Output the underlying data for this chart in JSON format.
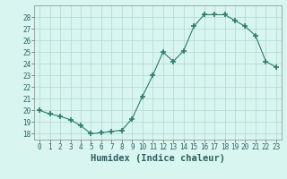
{
  "x": [
    0,
    1,
    2,
    3,
    4,
    5,
    6,
    7,
    8,
    9,
    10,
    11,
    12,
    13,
    14,
    15,
    16,
    17,
    18,
    19,
    20,
    21,
    22,
    23
  ],
  "y": [
    20.0,
    19.7,
    19.5,
    19.2,
    18.7,
    18.0,
    18.1,
    18.2,
    18.3,
    19.3,
    21.2,
    23.0,
    25.0,
    24.2,
    25.1,
    27.2,
    28.2,
    28.2,
    28.2,
    27.7,
    27.2,
    26.4,
    24.2,
    23.7
  ],
  "line_color": "#2d7d6d",
  "marker": "+",
  "marker_size": 4,
  "marker_lw": 1.2,
  "bg_color": "#d8f5f0",
  "grid_color": "#b0d8d0",
  "xlabel": "Humidex (Indice chaleur)",
  "xlim": [
    -0.5,
    23.5
  ],
  "ylim": [
    17.5,
    29.0
  ],
  "yticks": [
    18,
    19,
    20,
    21,
    22,
    23,
    24,
    25,
    26,
    27,
    28
  ],
  "xticks": [
    0,
    1,
    2,
    3,
    4,
    5,
    6,
    7,
    8,
    9,
    10,
    11,
    12,
    13,
    14,
    15,
    16,
    17,
    18,
    19,
    20,
    21,
    22,
    23
  ],
  "tick_labelsize": 5.5,
  "xlabel_fontsize": 7.5,
  "line_width": 0.8
}
